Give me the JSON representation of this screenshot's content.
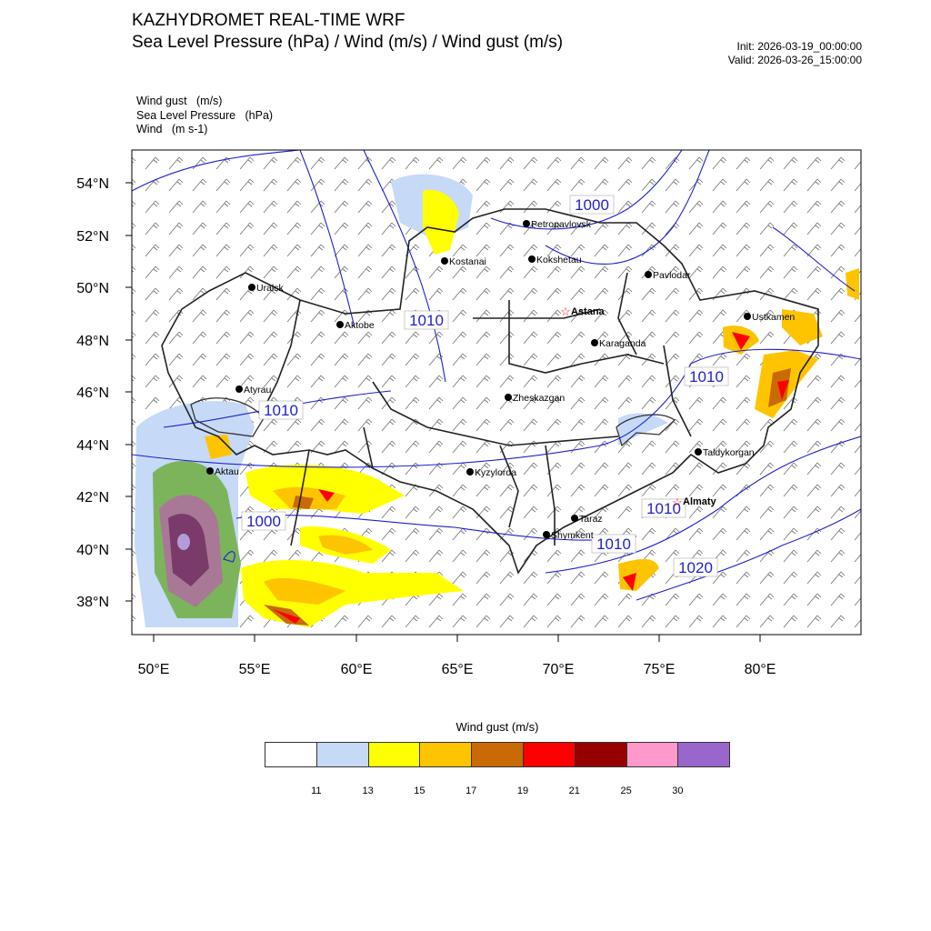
{
  "header": {
    "title": "KAZHYDROMET REAL-TIME WRF",
    "subtitle": "Sea Level Pressure  (hPa) / Wind  (m/s) / Wind gust  (m/s)",
    "init": "Init: 2026-03-19_00:00:00",
    "valid": "Valid: 2026-03-26_15:00:00"
  },
  "field_legend": [
    "Wind gust   (m/s)",
    "Sea Level Pressure   (hPa)",
    "Wind   (m s-1)"
  ],
  "axes": {
    "lat_labels": [
      "54°N",
      "52°N",
      "50°N",
      "48°N",
      "46°N",
      "44°N",
      "42°N",
      "40°N",
      "38°N"
    ],
    "lon_labels": [
      "50°E",
      "55°E",
      "60°E",
      "65°E",
      "70°E",
      "75°E",
      "80°E"
    ]
  },
  "cities": [
    {
      "name": "Petropavlovsk",
      "capital": false
    },
    {
      "name": "Kostanai",
      "capital": false
    },
    {
      "name": "Kokshetau",
      "capital": false
    },
    {
      "name": "Pavlodar",
      "capital": false
    },
    {
      "name": "Uralsk",
      "capital": false
    },
    {
      "name": "Aktobe",
      "capital": false
    },
    {
      "name": "Astana",
      "capital": true
    },
    {
      "name": "Ustkamen",
      "capital": false
    },
    {
      "name": "Karaganda",
      "capital": false
    },
    {
      "name": "Atyrau",
      "capital": false
    },
    {
      "name": "Zheskazgan",
      "capital": false
    },
    {
      "name": "Taldykorgan",
      "capital": false
    },
    {
      "name": "Aktau",
      "capital": false
    },
    {
      "name": "Kyzylorda",
      "capital": false
    },
    {
      "name": "Almaty",
      "capital": true
    },
    {
      "name": "Taraz",
      "capital": false
    },
    {
      "name": "Shymkent",
      "capital": false
    }
  ],
  "isobar_labels": [
    "1000",
    "1010",
    "1010",
    "1010",
    "1000",
    "1010",
    "1010",
    "1020"
  ],
  "colorbar": {
    "title": "Wind gust (m/s)",
    "colors": [
      "#ffffff",
      "#c6d9f7",
      "#ffff00",
      "#ffc400",
      "#c96a06",
      "#ff0000",
      "#960000",
      "#ff99cc",
      "#9966cc"
    ],
    "ticks": [
      "11",
      "13",
      "15",
      "17",
      "19",
      "21",
      "25",
      "30"
    ]
  }
}
